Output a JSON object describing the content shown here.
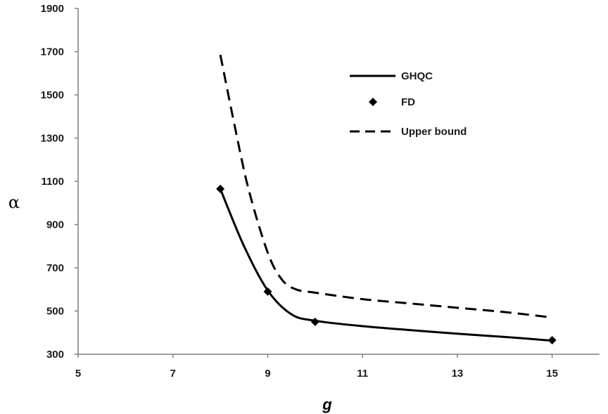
{
  "chart_data": {
    "type": "line",
    "xlabel": "g",
    "ylabel": "α",
    "xlim": [
      5,
      16
    ],
    "ylim": [
      300,
      1900
    ],
    "xticks": [
      "5",
      "7",
      "9",
      "11",
      "13",
      "15"
    ],
    "yticks": [
      "300",
      "500",
      "700",
      "900",
      "1100",
      "1300",
      "1500",
      "1700",
      "1900"
    ],
    "grid": false,
    "legend_position": "top-right",
    "series": [
      {
        "name": "GHQC",
        "style": "solid-line",
        "color": "#000000",
        "x": [
          8,
          8.5,
          9,
          9.5,
          10,
          11,
          12,
          13,
          14,
          15
        ],
        "y": [
          1065,
          800,
          595,
          485,
          455,
          430,
          412,
          395,
          380,
          363
        ]
      },
      {
        "name": "FD",
        "style": "diamond-markers",
        "color": "#000000",
        "x": [
          8,
          9,
          10,
          15
        ],
        "y": [
          1065,
          590,
          450,
          365
        ]
      },
      {
        "name": "Upper bound",
        "style": "dashed-line",
        "color": "#000000",
        "x": [
          8,
          8.3,
          8.6,
          9,
          9.3,
          9.6,
          10,
          11,
          12,
          13,
          14,
          15
        ],
        "y": [
          1685,
          1360,
          1060,
          770,
          645,
          600,
          585,
          555,
          535,
          515,
          495,
          470
        ]
      }
    ]
  }
}
